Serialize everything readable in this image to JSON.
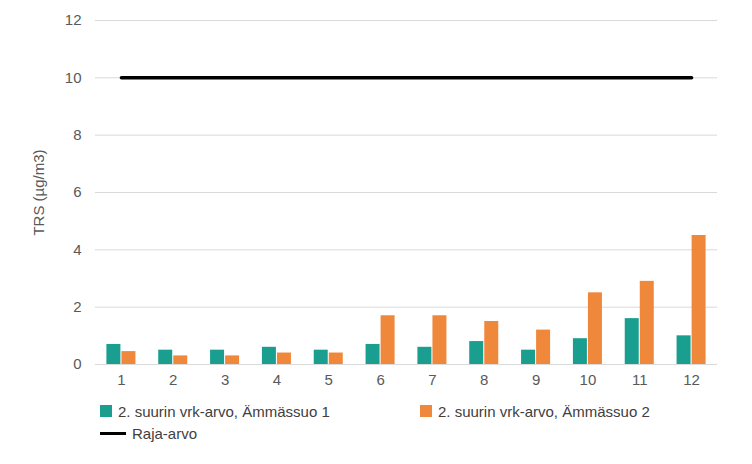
{
  "chart_data": {
    "type": "bar",
    "y_label": "TRS (µg/m3)",
    "categories": [
      "1",
      "2",
      "3",
      "4",
      "5",
      "6",
      "7",
      "8",
      "9",
      "10",
      "11",
      "12"
    ],
    "series": [
      {
        "name": "2. suurin vrk-arvo, Ämmässuo 1",
        "type": "bar",
        "color": "#1a9e8f",
        "values": [
          0.7,
          0.5,
          0.5,
          0.6,
          0.5,
          0.7,
          0.6,
          0.8,
          0.5,
          0.9,
          1.6,
          1.0
        ]
      },
      {
        "name": "2. suurin vrk-arvo, Ämmässuo 2",
        "type": "bar",
        "color": "#f0883c",
        "values": [
          0.45,
          0.3,
          0.3,
          0.4,
          0.4,
          1.7,
          1.7,
          1.5,
          1.2,
          2.5,
          2.9,
          4.5
        ]
      },
      {
        "name": "Raja-arvo",
        "type": "line",
        "color": "#000000",
        "values": [
          10,
          10,
          10,
          10,
          10,
          10,
          10,
          10,
          10,
          10,
          10,
          10
        ]
      }
    ],
    "ylim": [
      0,
      12
    ],
    "yticks": [
      0,
      2,
      4,
      6,
      8,
      10,
      12
    ],
    "grid": true,
    "legend": "bottom"
  }
}
